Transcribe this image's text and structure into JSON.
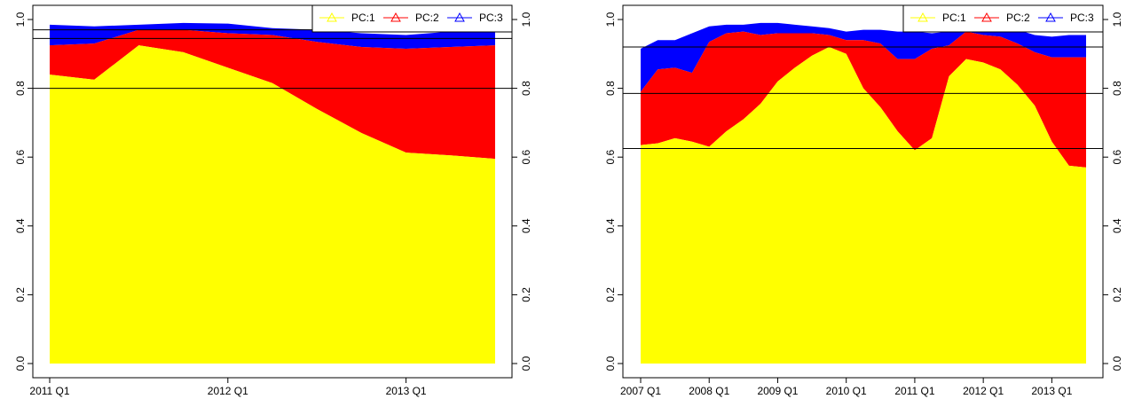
{
  "chart_data": [
    {
      "type": "area",
      "title": "",
      "xlabel": "",
      "ylabel": "",
      "stacked": true,
      "ylim": [
        0,
        1
      ],
      "yticks": [
        "0.0",
        "0.2",
        "0.4",
        "0.6",
        "0.8",
        "1.0"
      ],
      "ytick_values": [
        0,
        0.2,
        0.4,
        0.6,
        0.8,
        1.0
      ],
      "x_start": "2011 Q1",
      "x_end": "2013 Q3",
      "xticks": [
        {
          "label": "2011 Q1",
          "x": "2011 Q1"
        },
        {
          "label": "2012 Q1",
          "x": "2012 Q1"
        },
        {
          "label": "2013 Q1",
          "x": "2013 Q1"
        }
      ],
      "x": [
        "2011 Q1",
        "2011 Q2",
        "2011 Q3",
        "2011 Q4",
        "2012 Q1",
        "2012 Q2",
        "2012 Q3",
        "2012 Q4",
        "2013 Q1",
        "2013 Q2",
        "2013 Q3"
      ],
      "series": [
        {
          "name": "PC:1",
          "color": "#ffff00",
          "values": [
            0.84,
            0.825,
            0.925,
            0.905,
            0.86,
            0.815,
            0.74,
            0.67,
            0.613,
            0.605,
            0.595
          ]
        },
        {
          "name": "PC:2",
          "color": "#ff0000",
          "values": [
            0.925,
            0.93,
            0.97,
            0.97,
            0.96,
            0.955,
            0.935,
            0.92,
            0.915,
            0.92,
            0.925
          ]
        },
        {
          "name": "PC:3",
          "color": "#0000ff",
          "values": [
            0.985,
            0.98,
            0.985,
            0.99,
            0.988,
            0.975,
            0.97,
            0.96,
            0.955,
            0.965,
            0.98
          ]
        }
      ],
      "hlines": [
        0.8,
        0.945,
        0.97
      ],
      "legend": {
        "placement": "top-right",
        "entries": [
          "PC:1",
          "PC:2",
          "PC:3"
        ]
      }
    },
    {
      "type": "area",
      "title": "",
      "xlabel": "",
      "ylabel": "",
      "stacked": true,
      "ylim": [
        0,
        1
      ],
      "yticks": [
        "0.0",
        "0.2",
        "0.4",
        "0.6",
        "0.8",
        "1.0"
      ],
      "ytick_values": [
        0,
        0.2,
        0.4,
        0.6,
        0.8,
        1.0
      ],
      "x_start": "2007 Q1",
      "x_end": "2013 Q3",
      "xticks": [
        {
          "label": "2007 Q1",
          "x": "2007 Q1"
        },
        {
          "label": "2008 Q1",
          "x": "2008 Q1"
        },
        {
          "label": "2009 Q1",
          "x": "2009 Q1"
        },
        {
          "label": "2010 Q1",
          "x": "2010 Q1"
        },
        {
          "label": "2011 Q1",
          "x": "2011 Q1"
        },
        {
          "label": "2012 Q1",
          "x": "2012 Q1"
        },
        {
          "label": "2013 Q1",
          "x": "2013 Q1"
        }
      ],
      "x": [
        "2007 Q1",
        "2007 Q2",
        "2007 Q3",
        "2007 Q4",
        "2008 Q1",
        "2008 Q2",
        "2008 Q3",
        "2008 Q4",
        "2009 Q1",
        "2009 Q2",
        "2009 Q3",
        "2009 Q4",
        "2010 Q1",
        "2010 Q2",
        "2010 Q3",
        "2010 Q4",
        "2011 Q1",
        "2011 Q2",
        "2011 Q3",
        "2011 Q4",
        "2012 Q1",
        "2012 Q2",
        "2012 Q3",
        "2012 Q4",
        "2013 Q1",
        "2013 Q2",
        "2013 Q3"
      ],
      "series": [
        {
          "name": "PC:1",
          "color": "#ffff00",
          "values": [
            0.635,
            0.64,
            0.655,
            0.645,
            0.63,
            0.675,
            0.71,
            0.755,
            0.82,
            0.86,
            0.895,
            0.92,
            0.9,
            0.8,
            0.745,
            0.675,
            0.62,
            0.655,
            0.835,
            0.885,
            0.875,
            0.855,
            0.81,
            0.75,
            0.645,
            0.575,
            0.57
          ]
        },
        {
          "name": "PC:2",
          "color": "#ff0000",
          "values": [
            0.79,
            0.855,
            0.86,
            0.845,
            0.935,
            0.96,
            0.965,
            0.955,
            0.96,
            0.96,
            0.96,
            0.955,
            0.94,
            0.94,
            0.93,
            0.885,
            0.885,
            0.915,
            0.925,
            0.965,
            0.955,
            0.95,
            0.93,
            0.905,
            0.89,
            0.89,
            0.89
          ]
        },
        {
          "name": "PC:3",
          "color": "#0000ff",
          "values": [
            0.915,
            0.94,
            0.94,
            0.96,
            0.98,
            0.985,
            0.985,
            0.99,
            0.99,
            0.985,
            0.98,
            0.975,
            0.965,
            0.97,
            0.97,
            0.965,
            0.965,
            0.96,
            0.965,
            0.985,
            0.985,
            0.975,
            0.97,
            0.955,
            0.95,
            0.955,
            0.955
          ]
        }
      ],
      "hlines": [
        0.625,
        0.785,
        0.92
      ],
      "legend": {
        "placement": "top-right",
        "entries": [
          "PC:1",
          "PC:2",
          "PC:3"
        ]
      }
    }
  ]
}
